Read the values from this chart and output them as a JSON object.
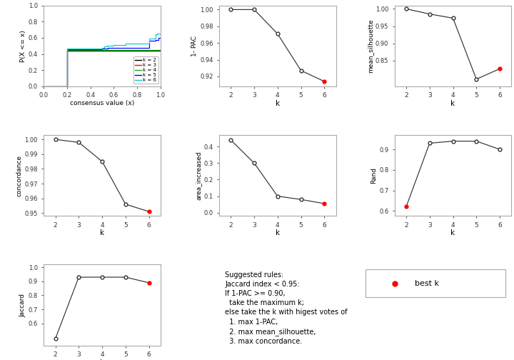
{
  "ecdf": {
    "k2": {
      "x": [
        0.0,
        0.2,
        0.2,
        1.0
      ],
      "y": [
        0.0,
        0.0,
        0.44,
        0.44
      ]
    },
    "k3": {
      "x": [
        0.0,
        0.2,
        0.2,
        1.0
      ],
      "y": [
        0.0,
        0.0,
        0.445,
        0.445
      ]
    },
    "k4": {
      "x": [
        0.0,
        0.2,
        0.2,
        1.0
      ],
      "y": [
        0.0,
        0.0,
        0.45,
        0.45
      ]
    },
    "k5": {
      "x": [
        0.0,
        0.2,
        0.2,
        0.5,
        0.5,
        0.55,
        0.55,
        0.6,
        0.6,
        0.9,
        0.9,
        0.96,
        0.96,
        0.98,
        0.98,
        1.0
      ],
      "y": [
        0.0,
        0.0,
        0.46,
        0.46,
        0.465,
        0.465,
        0.475,
        0.475,
        0.48,
        0.48,
        0.565,
        0.565,
        0.57,
        0.57,
        0.6,
        0.6
      ]
    },
    "k6": {
      "x": [
        0.0,
        0.2,
        0.2,
        0.5,
        0.5,
        0.52,
        0.52,
        0.54,
        0.54,
        0.58,
        0.58,
        0.6,
        0.6,
        0.62,
        0.62,
        0.7,
        0.7,
        0.9,
        0.9,
        0.96,
        0.96,
        0.97,
        0.97,
        1.0
      ],
      "y": [
        0.0,
        0.0,
        0.47,
        0.47,
        0.48,
        0.48,
        0.49,
        0.49,
        0.5,
        0.5,
        0.505,
        0.505,
        0.51,
        0.51,
        0.515,
        0.515,
        0.525,
        0.525,
        0.59,
        0.59,
        0.64,
        0.64,
        0.65,
        0.65
      ]
    }
  },
  "pac_1": {
    "k": [
      2,
      3,
      4,
      5,
      6
    ],
    "y": [
      1.0,
      1.0,
      0.971,
      0.927,
      0.914
    ],
    "best_k": 6,
    "ylabel": "1- PAC",
    "yticks": [
      0.92,
      0.94,
      0.96,
      0.98,
      1.0
    ],
    "ylim": [
      0.908,
      1.005
    ]
  },
  "mean_silhouette": {
    "k": [
      2,
      3,
      4,
      5,
      6
    ],
    "y": [
      1.0,
      0.985,
      0.973,
      0.796,
      0.826
    ],
    "best_k": 6,
    "ylabel": "mean_silhouette",
    "yticks": [
      0.85,
      0.9,
      0.95,
      1.0
    ],
    "ylim": [
      0.775,
      1.01
    ]
  },
  "concordance": {
    "k": [
      2,
      3,
      4,
      5,
      6
    ],
    "y": [
      1.0,
      0.998,
      0.985,
      0.956,
      0.951
    ],
    "best_k": 6,
    "ylabel": "concordance",
    "yticks": [
      0.955,
      0.96,
      0.965,
      0.97,
      0.975,
      0.98,
      0.985,
      0.99,
      0.995,
      1.0
    ],
    "ylim": [
      0.948,
      1.003
    ]
  },
  "area_increased": {
    "k": [
      2,
      3,
      4,
      5,
      6
    ],
    "y": [
      0.44,
      0.3,
      0.1,
      0.08,
      0.055
    ],
    "best_k": 6,
    "ylabel": "area_increased",
    "yticks": [
      0.0,
      0.1,
      0.2,
      0.3,
      0.4
    ],
    "ylim": [
      -0.02,
      0.47
    ]
  },
  "rand": {
    "k": [
      2,
      3,
      4,
      5,
      6
    ],
    "y": [
      0.62,
      0.93,
      0.94,
      0.94,
      0.9
    ],
    "best_k": 2,
    "ylabel": "Rand",
    "yticks": [
      0.6,
      0.7,
      0.8,
      0.9
    ],
    "ylim": [
      0.575,
      0.97
    ]
  },
  "jaccard": {
    "k": [
      2,
      3,
      4,
      5,
      6
    ],
    "y": [
      0.49,
      0.93,
      0.93,
      0.93,
      0.89
    ],
    "best_k": 6,
    "ylabel": "Jaccard",
    "yticks": [
      0.6,
      0.7,
      0.8,
      0.9,
      1.0
    ],
    "ylim": [
      0.44,
      1.02
    ]
  },
  "legend_text_lines": [
    "Suggested rules:",
    "Jaccard index < 0.95:",
    "If 1-PAC >= 0.90,",
    "  take the maximum k;",
    "else take the k with higest votes of",
    "  1. max 1-PAC,",
    "  2. max mean_silhouette,",
    "  3. max concordance."
  ],
  "best_k_label": "best k",
  "ecdf_colors": {
    "k2": "#000000",
    "k3": "#FF0000",
    "k4": "#00BB00",
    "k5": "#0000FF",
    "k6": "#00CCCC"
  },
  "bg_color": "#FFFFFF",
  "line_color": "#333333",
  "point_open_facecolor": "#FFFFFF",
  "point_best_color": "#FF0000",
  "spine_color": "#AAAAAA"
}
